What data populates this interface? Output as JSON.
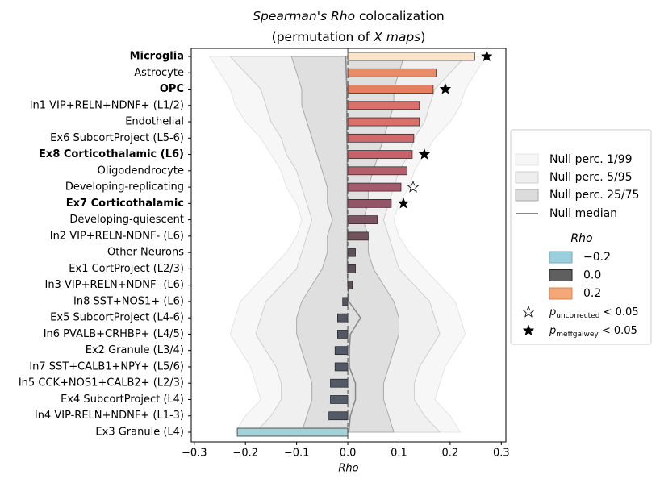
{
  "chart_data": {
    "type": "bar",
    "orientation": "horizontal",
    "title_lines": [
      [
        {
          "text": "Spearman's Rho",
          "italic": true
        },
        {
          "text": " colocalization",
          "italic": false
        }
      ],
      [
        {
          "text": "(permutation of ",
          "italic": false
        },
        {
          "text": "X maps",
          "italic": true
        },
        {
          "text": ")",
          "italic": false
        }
      ]
    ],
    "xlabel": "Rho",
    "categories": [
      "Microglia",
      "Astrocyte",
      "OPC",
      "In1 VIP+RELN+NDNF+ (L1/2)",
      "Endothelial",
      "Ex6 SubcortProject (L5-6)",
      "Ex8 Corticothalamic (L6)",
      "Oligodendrocyte",
      "Developing-replicating",
      "Ex7 Corticothalamic",
      "Developing-quiescent",
      "In2 VIP+RELN-NDNF- (L6)",
      "Other Neurons",
      "Ex1 CortProject (L2/3)",
      "In3 VIP+RELN+NDNF- (L6)",
      "In8 SST+NOS1+ (L6)",
      "Ex5 SubcortProject (L4-6)",
      "In6 PVALB+CRHBP+ (L4/5)",
      "Ex2 Granule (L3/4)",
      "In7 SST+CALB1+NPY+ (L5/6)",
      "In5 CCK+NOS1+CALB2+ (L2/3)",
      "Ex4 SubcortProject (L4)",
      "In4 VIP-RELN+NDNF+ (L1-3)",
      "Ex3 Granule (L4)"
    ],
    "values": [
      0.248,
      0.173,
      0.167,
      0.14,
      0.14,
      0.129,
      0.126,
      0.116,
      0.104,
      0.085,
      0.058,
      0.04,
      0.015,
      0.015,
      0.009,
      -0.01,
      -0.02,
      -0.02,
      -0.025,
      -0.025,
      -0.034,
      -0.034,
      -0.037,
      -0.216
    ],
    "colors": [
      "#fbe3cc",
      "#e88c66",
      "#e57f5f",
      "#d9706a",
      "#d9706a",
      "#cf6a6c",
      "#c7626b",
      "#b65e6c",
      "#a65a6d",
      "#935568",
      "#7c5560",
      "#72525b",
      "#5e4f5a",
      "#5d4e59",
      "#5a4e58",
      "#55545f",
      "#545662",
      "#545662",
      "#525865",
      "#525865",
      "#535a68",
      "#535a68",
      "#535a68",
      "#a4d0d8"
    ],
    "markers": [
      "filled",
      null,
      "filled",
      null,
      null,
      null,
      "filled",
      null,
      "open",
      "filled",
      null,
      null,
      null,
      null,
      null,
      null,
      null,
      null,
      null,
      null,
      null,
      null,
      null,
      null
    ],
    "null_bands": [
      {
        "name": "Null perc. 1/99",
        "color": "#f6f6f6",
        "edge": "#e4e4e4",
        "low": [
          -0.27,
          -0.25,
          -0.23,
          -0.22,
          -0.2,
          -0.17,
          -0.15,
          -0.13,
          -0.12,
          -0.1,
          -0.09,
          -0.1,
          -0.12,
          -0.15,
          -0.18,
          -0.21,
          -0.22,
          -0.23,
          -0.21,
          -0.19,
          -0.18,
          -0.17,
          -0.2,
          -0.22
        ],
        "high": [
          0.27,
          0.25,
          0.23,
          0.22,
          0.2,
          0.17,
          0.15,
          0.13,
          0.12,
          0.1,
          0.09,
          0.1,
          0.12,
          0.15,
          0.18,
          0.21,
          0.22,
          0.23,
          0.21,
          0.19,
          0.18,
          0.17,
          0.2,
          0.22
        ]
      },
      {
        "name": "Null perc. 5/95",
        "color": "#eeeeee",
        "edge": "#cfcfcf",
        "low": [
          -0.23,
          -0.2,
          -0.17,
          -0.16,
          -0.15,
          -0.13,
          -0.12,
          -0.1,
          -0.09,
          -0.08,
          -0.07,
          -0.08,
          -0.09,
          -0.1,
          -0.13,
          -0.16,
          -0.17,
          -0.18,
          -0.16,
          -0.14,
          -0.13,
          -0.13,
          -0.15,
          -0.18
        ],
        "high": [
          0.23,
          0.2,
          0.17,
          0.16,
          0.15,
          0.13,
          0.12,
          0.1,
          0.09,
          0.08,
          0.07,
          0.08,
          0.09,
          0.1,
          0.13,
          0.16,
          0.17,
          0.18,
          0.16,
          0.14,
          0.13,
          0.13,
          0.15,
          0.18
        ]
      },
      {
        "name": "Null perc. 25/75",
        "color": "#dcdcdc",
        "edge": "#aaaaaa",
        "low": [
          -0.11,
          -0.1,
          -0.09,
          -0.09,
          -0.08,
          -0.07,
          -0.06,
          -0.05,
          -0.04,
          -0.04,
          -0.03,
          -0.04,
          -0.04,
          -0.05,
          -0.07,
          -0.09,
          -0.1,
          -0.1,
          -0.09,
          -0.08,
          -0.07,
          -0.07,
          -0.08,
          -0.09
        ],
        "high": [
          0.11,
          0.1,
          0.09,
          0.09,
          0.08,
          0.07,
          0.06,
          0.05,
          0.04,
          0.04,
          0.03,
          0.04,
          0.04,
          0.05,
          0.07,
          0.09,
          0.1,
          0.1,
          0.09,
          0.08,
          0.07,
          0.07,
          0.08,
          0.09
        ]
      }
    ],
    "null_median": {
      "name": "Null median",
      "color": "#888888",
      "values": [
        -0.004,
        -0.003,
        -0.002,
        -0.002,
        -0.002,
        -0.002,
        -0.001,
        -0.001,
        -0.001,
        -0.001,
        -0.001,
        -0.001,
        -0.001,
        -0.001,
        0,
        0.002,
        0.025,
        0.005,
        0.003,
        0.003,
        0.015,
        0.015,
        0.005,
        0.002
      ]
    },
    "xlim": [
      -0.306,
      0.309
    ],
    "xticks": [
      {
        "value": -0.3,
        "label": "−0.3"
      },
      {
        "value": -0.2,
        "label": "−0.2"
      },
      {
        "value": -0.1,
        "label": "−0.1"
      },
      {
        "value": 0,
        "label": "0.0"
      },
      0.1,
      0.2,
      0.3
    ],
    "colormap_legend": {
      "title": "Rho",
      "entries": [
        {
          "value": -0.2,
          "label": "−0.2",
          "color": "#9ccfdd",
          "edge": "#6aa8bd"
        },
        {
          "value": 0,
          "label": "0.0",
          "color": "#5f5f5f",
          "edge": "#222222"
        },
        {
          "value": 0.2,
          "label": "0.2",
          "color": "#f4a878",
          "edge": "#e08050"
        }
      ]
    },
    "significance_legend": [
      {
        "marker": "open",
        "base": "p",
        "sub": "uncorrected",
        "rest": " < 0.05"
      },
      {
        "marker": "filled",
        "base": "p",
        "sub": "meffgalwey",
        "rest": " < 0.05"
      }
    ],
    "legend_position": "right"
  }
}
